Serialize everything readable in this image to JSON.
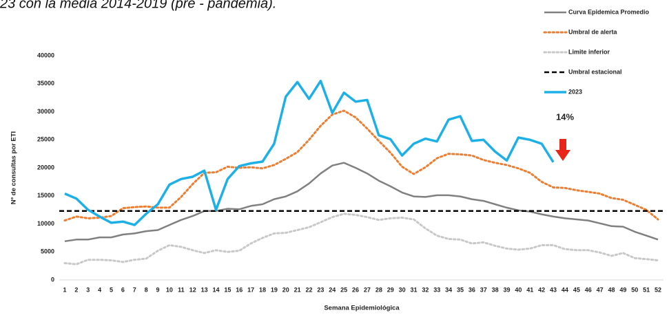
{
  "chart_data": {
    "type": "line",
    "title": "23 con la media 2014-2019 (pre - pandemia).",
    "y_label": "Nº de consultas por ETI",
    "x_label": "Semana Epidemiológica",
    "annotation": "14%",
    "categories": [
      1,
      2,
      3,
      4,
      5,
      6,
      7,
      8,
      9,
      10,
      11,
      12,
      13,
      14,
      15,
      16,
      17,
      18,
      19,
      20,
      21,
      22,
      23,
      24,
      25,
      26,
      27,
      28,
      29,
      30,
      31,
      32,
      33,
      34,
      35,
      36,
      37,
      38,
      39,
      40,
      41,
      42,
      43,
      44,
      45,
      46,
      47,
      48,
      49,
      50,
      51,
      52
    ],
    "ylim": [
      0,
      40000
    ],
    "yticks": [
      0,
      5000,
      10000,
      15000,
      20000,
      25000,
      30000,
      35000,
      40000
    ],
    "series": [
      {
        "name": "Curva Epidemica Promedio",
        "color": "#808080",
        "style": "solid",
        "width": 2.5,
        "values": [
          6900,
          7200,
          7200,
          7600,
          7600,
          8100,
          8300,
          8700,
          8900,
          9800,
          10700,
          11400,
          12300,
          12300,
          12700,
          12600,
          13200,
          13500,
          14400,
          14900,
          15800,
          17200,
          19000,
          20400,
          20900,
          20000,
          19000,
          17700,
          16700,
          15600,
          14900,
          14800,
          15100,
          15100,
          14900,
          14400,
          14100,
          13500,
          12900,
          12400,
          12200,
          11700,
          11300,
          11000,
          10800,
          10600,
          10100,
          9600,
          9500,
          8600,
          7900,
          7200
        ]
      },
      {
        "name": "Umbral de alerta",
        "color": "#ed7d31",
        "style": "dotted",
        "width": 3,
        "values": [
          10600,
          11300,
          11000,
          11100,
          11400,
          12800,
          13000,
          13100,
          12900,
          12900,
          14800,
          17100,
          19100,
          19200,
          20200,
          20000,
          20100,
          19900,
          20500,
          21600,
          22800,
          25000,
          27500,
          29500,
          30200,
          29000,
          27000,
          24800,
          22700,
          20200,
          18900,
          20100,
          21700,
          22500,
          22400,
          22200,
          21400,
          20900,
          20500,
          19900,
          19100,
          17500,
          16500,
          16400,
          16000,
          15700,
          15400,
          14600,
          14300,
          13400,
          12500,
          10800
        ]
      },
      {
        "name": "Limite inferior",
        "color": "#c8c8c8",
        "style": "dotted",
        "width": 3,
        "values": [
          3000,
          2800,
          3600,
          3600,
          3500,
          3200,
          3600,
          3800,
          5200,
          6200,
          5900,
          5300,
          4800,
          5300,
          5000,
          5200,
          6500,
          7500,
          8300,
          8400,
          8900,
          9400,
          10300,
          11200,
          11800,
          11600,
          11200,
          10700,
          11000,
          11100,
          10800,
          9200,
          7900,
          7300,
          7200,
          6500,
          6700,
          6100,
          5600,
          5400,
          5600,
          6200,
          6200,
          5500,
          5300,
          5300,
          4900,
          4300,
          4800,
          3900,
          3700,
          3500
        ]
      },
      {
        "name": "Umbral estacional",
        "color": "#000000",
        "style": "dashed",
        "width": 2.5,
        "value": 12300
      },
      {
        "name": "2023",
        "color": "#1cb0e6",
        "style": "solid",
        "width": 3.5,
        "values": [
          15400,
          14500,
          12500,
          11300,
          10200,
          10400,
          9800,
          11800,
          13500,
          17000,
          18000,
          18400,
          19500,
          12500,
          18000,
          20300,
          20800,
          21100,
          24300,
          32700,
          35300,
          32300,
          35500,
          29800,
          33400,
          31800,
          32100,
          25800,
          25100,
          22200,
          24300,
          25200,
          24700,
          28600,
          29200,
          24800,
          25000,
          22900,
          21300,
          25400,
          25000,
          24300,
          21000,
          null,
          null,
          null,
          null,
          null,
          null,
          null,
          null,
          null
        ]
      }
    ]
  }
}
